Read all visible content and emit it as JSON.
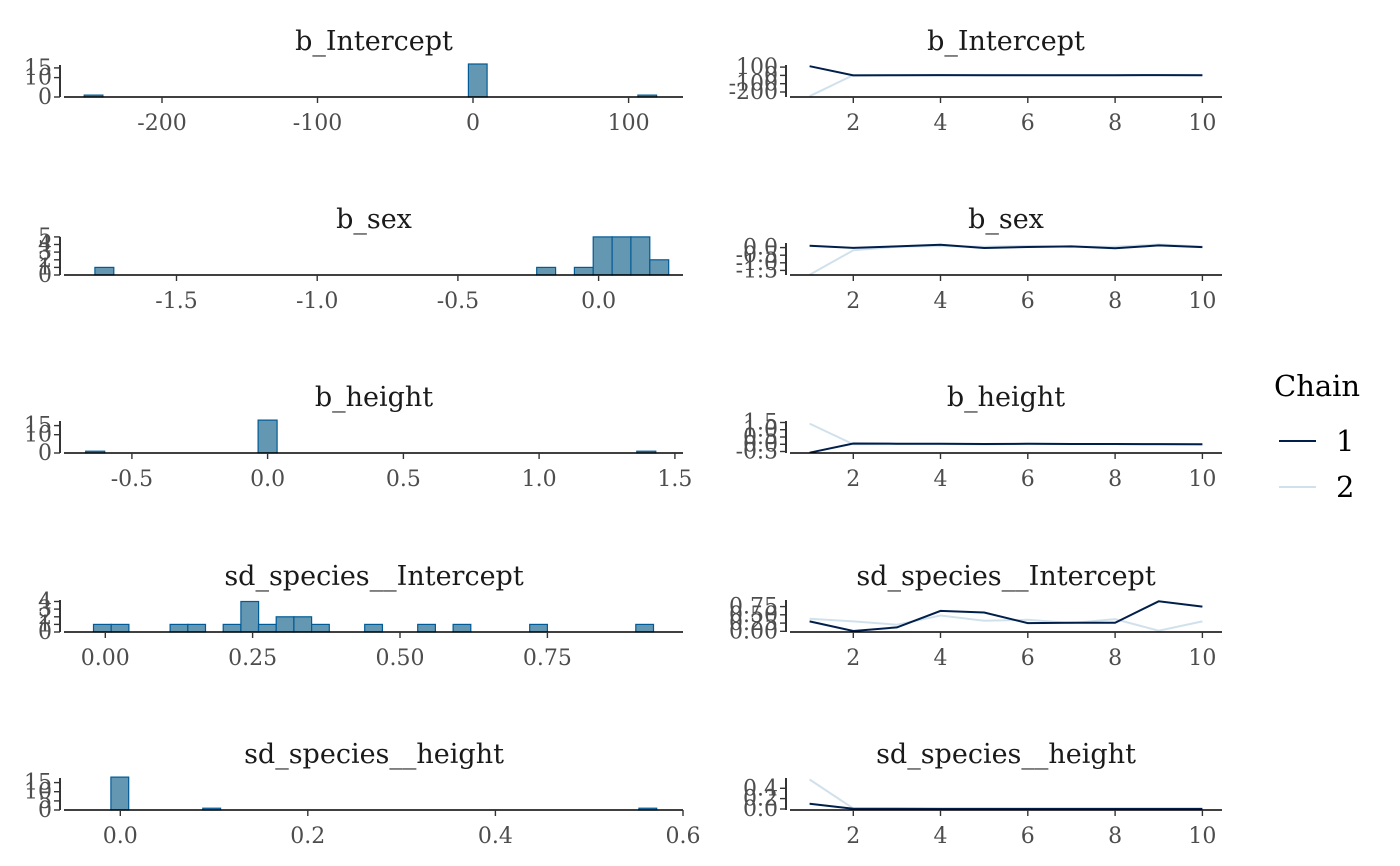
{
  "legend": {
    "title": "Chain",
    "items": [
      {
        "label": "1",
        "color": "#011f4b"
      },
      {
        "label": "2",
        "color": "#d1e1ec"
      }
    ]
  },
  "colors": {
    "hist_fill": "#6497b1",
    "hist_stroke": "#005b96"
  },
  "chart_data": [
    {
      "type": "bar",
      "title": "b_Intercept",
      "xticks": [
        -200,
        -100,
        0,
        100
      ],
      "xtick_labels": [
        "-200",
        "-100",
        "0",
        "100"
      ],
      "yticks": [
        0,
        10,
        15
      ],
      "ytick_labels": [
        "0",
        "10",
        "15"
      ],
      "xlim": [
        -263,
        135
      ],
      "ylim": [
        0,
        16.5
      ],
      "bins": [
        [
          -250,
          -238,
          1
        ],
        [
          -3,
          9,
          17
        ],
        [
          106,
          118,
          1
        ]
      ]
    },
    {
      "type": "line",
      "title": "b_Intercept",
      "xticks": [
        2,
        4,
        6,
        8,
        10
      ],
      "xtick_labels": [
        "2",
        "4",
        "6",
        "8",
        "10"
      ],
      "yticks": [
        -200,
        -100,
        0,
        100
      ],
      "ytick_labels": [
        "-200",
        "-100",
        "0",
        "100"
      ],
      "xlim": [
        0.55,
        10.45
      ],
      "ylim": [
        -260,
        125
      ],
      "series": [
        {
          "name": "1",
          "x": [
            1,
            2,
            3,
            4,
            5,
            6,
            7,
            8,
            9,
            10
          ],
          "y": [
            110,
            0,
            2,
            3,
            1,
            2,
            2,
            1,
            3,
            2
          ]
        },
        {
          "name": "2",
          "x": [
            1,
            2,
            3,
            4,
            5,
            6,
            7,
            8,
            9,
            10
          ],
          "y": [
            -250,
            4,
            3,
            2,
            6,
            3,
            4,
            3,
            5,
            6
          ]
        }
      ]
    },
    {
      "type": "bar",
      "title": "b_sex",
      "xticks": [
        -1.5,
        -1.0,
        -0.5,
        0.0
      ],
      "xtick_labels": [
        "-1.5",
        "-1.0",
        "-0.5",
        "0.0"
      ],
      "yticks": [
        0,
        1,
        2,
        3,
        4,
        5
      ],
      "ytick_labels": [
        "0",
        "1",
        "2",
        "3",
        "4",
        "5"
      ],
      "xlim": [
        -1.9,
        0.3
      ],
      "ylim": [
        0,
        4.2
      ],
      "bins": [
        [
          -1.79,
          -1.723,
          1
        ],
        [
          -0.22,
          -0.153,
          1
        ],
        [
          -0.086,
          -0.019,
          1
        ],
        [
          -0.019,
          0.048,
          5
        ],
        [
          0.048,
          0.115,
          5
        ],
        [
          0.115,
          0.182,
          5
        ],
        [
          0.182,
          0.249,
          2
        ]
      ]
    },
    {
      "type": "line",
      "title": "b_sex",
      "xticks": [
        2,
        4,
        6,
        8,
        10
      ],
      "xtick_labels": [
        "2",
        "4",
        "6",
        "8",
        "10"
      ],
      "yticks": [
        -1.5,
        -1.0,
        -0.5,
        0.0
      ],
      "ytick_labels": [
        "-1.5",
        "-1.0",
        "-0.5",
        "0.0"
      ],
      "xlim": [
        0.55,
        10.45
      ],
      "ylim": [
        -1.8,
        0.3
      ],
      "series": [
        {
          "name": "1",
          "x": [
            1,
            2,
            3,
            4,
            5,
            6,
            7,
            8,
            9,
            10
          ],
          "y": [
            0.12,
            -0.02,
            0.08,
            0.18,
            -0.03,
            0.04,
            0.08,
            -0.05,
            0.14,
            0.03
          ]
        },
        {
          "name": "2",
          "x": [
            1,
            2,
            3,
            4,
            5,
            6,
            7,
            8,
            9,
            10
          ],
          "y": [
            -1.78,
            -0.18,
            0.05,
            0.1,
            0.06,
            0.11,
            0.06,
            0.05,
            0.2,
            0.07
          ]
        }
      ]
    },
    {
      "type": "bar",
      "title": "b_height",
      "xticks": [
        -0.5,
        0.0,
        0.5,
        1.0,
        1.5
      ],
      "xtick_labels": [
        "-0.5",
        "0.0",
        "0.5",
        "1.0",
        "1.5"
      ],
      "yticks": [
        0,
        10,
        15
      ],
      "ytick_labels": [
        "0",
        "10",
        "15"
      ],
      "xlim": [
        -0.75,
        1.53
      ],
      "ylim": [
        0,
        17.5
      ],
      "bins": [
        [
          -0.67,
          -0.6,
          1
        ],
        [
          -0.035,
          0.035,
          18
        ],
        [
          1.36,
          1.43,
          1
        ]
      ]
    },
    {
      "type": "line",
      "title": "b_height",
      "xticks": [
        2,
        4,
        6,
        8,
        10
      ],
      "xtick_labels": [
        "2",
        "4",
        "6",
        "8",
        "10"
      ],
      "yticks": [
        -0.5,
        0.0,
        0.5,
        1.0,
        1.5
      ],
      "ytick_labels": [
        "-0.5",
        "0.0",
        "0.5",
        "1.0",
        "1.5"
      ],
      "xlim": [
        0.55,
        10.45
      ],
      "ylim": [
        -0.6,
        1.6
      ],
      "series": [
        {
          "name": "1",
          "x": [
            1,
            2,
            3,
            4,
            5,
            6,
            7,
            8,
            9,
            10
          ],
          "y": [
            -0.58,
            0.05,
            0.04,
            0.03,
            0.02,
            0.03,
            0.02,
            0.02,
            0.01,
            0.0
          ]
        },
        {
          "name": "2",
          "x": [
            1,
            2,
            3,
            4,
            5,
            6,
            7,
            8,
            9,
            10
          ],
          "y": [
            1.42,
            0.0,
            0.01,
            0.02,
            -0.01,
            0.03,
            0.02,
            0.01,
            0.0,
            -0.02
          ]
        }
      ]
    },
    {
      "type": "bar",
      "title": "sd_species__Intercept",
      "xticks": [
        0.0,
        0.25,
        0.5,
        0.75
      ],
      "xtick_labels": [
        "0.00",
        "0.25",
        "0.50",
        "0.75"
      ],
      "yticks": [
        0,
        1,
        2,
        3,
        4
      ],
      "ytick_labels": [
        "0",
        "1",
        "2",
        "3",
        "4"
      ],
      "xlim": [
        -0.07,
        0.98
      ],
      "ylim": [
        0,
        4.2
      ],
      "bins": [
        [
          -0.02,
          0.01,
          1
        ],
        [
          0.01,
          0.04,
          1
        ],
        [
          0.11,
          0.14,
          1
        ],
        [
          0.14,
          0.17,
          1
        ],
        [
          0.2,
          0.23,
          1
        ],
        [
          0.23,
          0.26,
          4
        ],
        [
          0.26,
          0.29,
          1
        ],
        [
          0.29,
          0.32,
          2
        ],
        [
          0.32,
          0.35,
          2
        ],
        [
          0.35,
          0.38,
          1
        ],
        [
          0.44,
          0.47,
          1
        ],
        [
          0.53,
          0.56,
          1
        ],
        [
          0.59,
          0.62,
          1
        ],
        [
          0.72,
          0.75,
          1
        ],
        [
          0.9,
          0.93,
          1
        ]
      ]
    },
    {
      "type": "line",
      "title": "sd_species__Intercept",
      "xticks": [
        2,
        4,
        6,
        8,
        10
      ],
      "xtick_labels": [
        "2",
        "4",
        "6",
        "8",
        "10"
      ],
      "yticks": [
        0.0,
        0.25,
        0.5,
        0.75
      ],
      "ytick_labels": [
        "0.00",
        "0.25",
        "0.50",
        "0.75"
      ],
      "xlim": [
        0.55,
        10.45
      ],
      "ylim": [
        -0.02,
        0.95
      ],
      "series": [
        {
          "name": "1",
          "x": [
            1,
            2,
            3,
            4,
            5,
            6,
            7,
            8,
            9,
            10
          ],
          "y": [
            0.3,
            0.01,
            0.12,
            0.62,
            0.57,
            0.25,
            0.26,
            0.26,
            0.91,
            0.75
          ]
        },
        {
          "name": "2",
          "x": [
            1,
            2,
            3,
            4,
            5,
            6,
            7,
            8,
            9,
            10
          ],
          "y": [
            0.38,
            0.3,
            0.2,
            0.48,
            0.32,
            0.35,
            0.25,
            0.37,
            0.02,
            0.3
          ]
        }
      ]
    },
    {
      "type": "bar",
      "title": "sd_species__height",
      "xticks": [
        0.0,
        0.2,
        0.4,
        0.6
      ],
      "xtick_labels": [
        "0.0",
        "0.2",
        "0.4",
        "0.6"
      ],
      "yticks": [
        0,
        5,
        10,
        15
      ],
      "ytick_labels": [
        "0",
        "5",
        "10",
        "15"
      ],
      "xlim": [
        -0.06,
        0.6
      ],
      "ylim": [
        0,
        17.5
      ],
      "bins": [
        [
          -0.01,
          0.009,
          18
        ],
        [
          0.088,
          0.107,
          1
        ],
        [
          0.553,
          0.572,
          1
        ]
      ]
    },
    {
      "type": "line",
      "title": "sd_species__height",
      "xticks": [
        2,
        4,
        6,
        8,
        10
      ],
      "xtick_labels": [
        "2",
        "4",
        "6",
        "8",
        "10"
      ],
      "yticks": [
        0.0,
        0.2,
        0.4
      ],
      "ytick_labels": [
        "0.0",
        "0.2",
        "0.4"
      ],
      "xlim": [
        0.55,
        10.45
      ],
      "ylim": [
        -0.02,
        0.6
      ],
      "series": [
        {
          "name": "1",
          "x": [
            1,
            2,
            3,
            4,
            5,
            6,
            7,
            8,
            9,
            10
          ],
          "y": [
            0.1,
            0.003,
            0.003,
            0.002,
            0.002,
            0.002,
            0.001,
            0.002,
            0.001,
            0.001
          ]
        },
        {
          "name": "2",
          "x": [
            1,
            2,
            3,
            4,
            5,
            6,
            7,
            8,
            9,
            10
          ],
          "y": [
            0.57,
            0.01,
            0.004,
            0.003,
            0.003,
            0.002,
            0.002,
            0.002,
            0.001,
            0.002
          ]
        }
      ]
    }
  ]
}
